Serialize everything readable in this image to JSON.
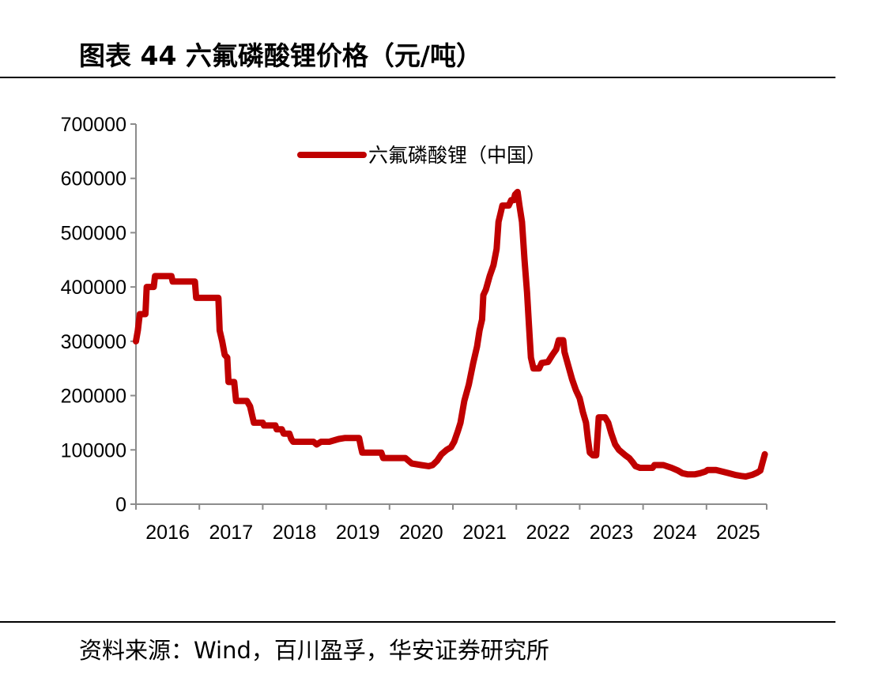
{
  "figure": {
    "title": "图表 44 六氟磷酸锂价格（元/吨）",
    "source": "资料来源：Wind，百川盈孚，华安证券研究所"
  },
  "chart_data": {
    "type": "line",
    "title": "图表 44 六氟磷酸锂价格（元/吨）",
    "xlabel": "",
    "ylabel": "",
    "ylim": [
      0,
      700000
    ],
    "xlim": [
      2016,
      2025.95
    ],
    "y_ticks": [
      "0",
      "100000",
      "200000",
      "300000",
      "400000",
      "500000",
      "600000",
      "700000"
    ],
    "x_ticks": [
      "2016",
      "2017",
      "2018",
      "2019",
      "2020",
      "2021",
      "2022",
      "2023",
      "2024",
      "2025"
    ],
    "legend_position": "top-center",
    "grid": false,
    "color": "#C00000",
    "series": [
      {
        "name": "六氟磷酸锂（中国）",
        "points": [
          [
            2016.0,
            300000
          ],
          [
            2016.03,
            320000
          ],
          [
            2016.06,
            350000
          ],
          [
            2016.15,
            350000
          ],
          [
            2016.17,
            400000
          ],
          [
            2016.28,
            400000
          ],
          [
            2016.3,
            420000
          ],
          [
            2016.56,
            420000
          ],
          [
            2016.58,
            410000
          ],
          [
            2016.93,
            410000
          ],
          [
            2016.95,
            380000
          ],
          [
            2017.3,
            380000
          ],
          [
            2017.32,
            320000
          ],
          [
            2017.36,
            300000
          ],
          [
            2017.4,
            275000
          ],
          [
            2017.44,
            270000
          ],
          [
            2017.46,
            225000
          ],
          [
            2017.55,
            225000
          ],
          [
            2017.58,
            190000
          ],
          [
            2017.75,
            190000
          ],
          [
            2017.8,
            180000
          ],
          [
            2017.84,
            160000
          ],
          [
            2017.86,
            150000
          ],
          [
            2018.0,
            150000
          ],
          [
            2018.02,
            145000
          ],
          [
            2018.2,
            145000
          ],
          [
            2018.22,
            138000
          ],
          [
            2018.3,
            138000
          ],
          [
            2018.33,
            130000
          ],
          [
            2018.42,
            130000
          ],
          [
            2018.45,
            120000
          ],
          [
            2018.48,
            115000
          ],
          [
            2018.8,
            115000
          ],
          [
            2018.85,
            110000
          ],
          [
            2018.92,
            115000
          ],
          [
            2019.05,
            115000
          ],
          [
            2019.2,
            120000
          ],
          [
            2019.3,
            122000
          ],
          [
            2019.52,
            122000
          ],
          [
            2019.55,
            105000
          ],
          [
            2019.57,
            95000
          ],
          [
            2019.87,
            95000
          ],
          [
            2019.9,
            85000
          ],
          [
            2020.25,
            85000
          ],
          [
            2020.35,
            75000
          ],
          [
            2020.5,
            72000
          ],
          [
            2020.62,
            70000
          ],
          [
            2020.68,
            72000
          ],
          [
            2020.75,
            80000
          ],
          [
            2020.82,
            92000
          ],
          [
            2020.9,
            100000
          ],
          [
            2020.97,
            105000
          ],
          [
            2021.02,
            115000
          ],
          [
            2021.08,
            135000
          ],
          [
            2021.12,
            150000
          ],
          [
            2021.18,
            190000
          ],
          [
            2021.25,
            220000
          ],
          [
            2021.32,
            260000
          ],
          [
            2021.38,
            290000
          ],
          [
            2021.42,
            320000
          ],
          [
            2021.46,
            340000
          ],
          [
            2021.48,
            385000
          ],
          [
            2021.52,
            395000
          ],
          [
            2021.58,
            420000
          ],
          [
            2021.64,
            440000
          ],
          [
            2021.69,
            470000
          ],
          [
            2021.72,
            520000
          ],
          [
            2021.76,
            540000
          ],
          [
            2021.78,
            550000
          ],
          [
            2021.88,
            550000
          ],
          [
            2021.92,
            560000
          ],
          [
            2021.96,
            560000
          ],
          [
            2021.98,
            570000
          ],
          [
            2022.02,
            575000
          ],
          [
            2022.05,
            550000
          ],
          [
            2022.09,
            520000
          ],
          [
            2022.13,
            450000
          ],
          [
            2022.17,
            390000
          ],
          [
            2022.2,
            330000
          ],
          [
            2022.23,
            270000
          ],
          [
            2022.27,
            250000
          ],
          [
            2022.36,
            250000
          ],
          [
            2022.4,
            260000
          ],
          [
            2022.5,
            262000
          ],
          [
            2022.57,
            275000
          ],
          [
            2022.63,
            285000
          ],
          [
            2022.67,
            302000
          ],
          [
            2022.74,
            302000
          ],
          [
            2022.76,
            280000
          ],
          [
            2022.82,
            255000
          ],
          [
            2022.88,
            230000
          ],
          [
            2022.94,
            210000
          ],
          [
            2023.0,
            195000
          ],
          [
            2023.05,
            170000
          ],
          [
            2023.1,
            150000
          ],
          [
            2023.13,
            120000
          ],
          [
            2023.16,
            95000
          ],
          [
            2023.21,
            90000
          ],
          [
            2023.26,
            90000
          ],
          [
            2023.3,
            160000
          ],
          [
            2023.4,
            160000
          ],
          [
            2023.45,
            150000
          ],
          [
            2023.5,
            130000
          ],
          [
            2023.56,
            110000
          ],
          [
            2023.62,
            100000
          ],
          [
            2023.72,
            90000
          ],
          [
            2023.78,
            85000
          ],
          [
            2023.83,
            78000
          ],
          [
            2023.88,
            70000
          ],
          [
            2023.95,
            67000
          ],
          [
            2024.15,
            67000
          ],
          [
            2024.18,
            72000
          ],
          [
            2024.32,
            72000
          ],
          [
            2024.45,
            67000
          ],
          [
            2024.55,
            62000
          ],
          [
            2024.62,
            57000
          ],
          [
            2024.7,
            55000
          ],
          [
            2024.82,
            55000
          ],
          [
            2024.9,
            57000
          ],
          [
            2024.98,
            60000
          ],
          [
            2025.02,
            63000
          ],
          [
            2025.15,
            63000
          ],
          [
            2025.25,
            60000
          ],
          [
            2025.35,
            57000
          ],
          [
            2025.45,
            54000
          ],
          [
            2025.55,
            52000
          ],
          [
            2025.62,
            51000
          ],
          [
            2025.72,
            54000
          ],
          [
            2025.8,
            58000
          ],
          [
            2025.85,
            62000
          ],
          [
            2025.88,
            75000
          ],
          [
            2025.92,
            92000
          ]
        ]
      }
    ]
  }
}
